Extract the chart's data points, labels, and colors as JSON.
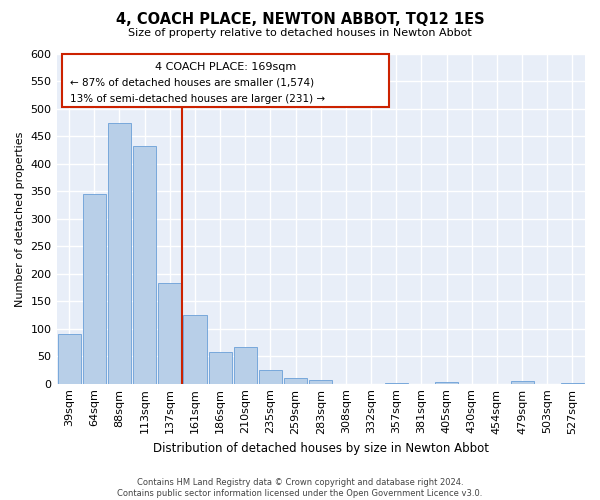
{
  "title": "4, COACH PLACE, NEWTON ABBOT, TQ12 1ES",
  "subtitle": "Size of property relative to detached houses in Newton Abbot",
  "xlabel": "Distribution of detached houses by size in Newton Abbot",
  "ylabel": "Number of detached properties",
  "bar_labels": [
    "39sqm",
    "64sqm",
    "88sqm",
    "113sqm",
    "137sqm",
    "161sqm",
    "186sqm",
    "210sqm",
    "235sqm",
    "259sqm",
    "283sqm",
    "308sqm",
    "332sqm",
    "357sqm",
    "381sqm",
    "405sqm",
    "430sqm",
    "454sqm",
    "479sqm",
    "503sqm",
    "527sqm"
  ],
  "bar_values": [
    90,
    345,
    475,
    432,
    184,
    125,
    57,
    67,
    25,
    10,
    6,
    0,
    0,
    2,
    0,
    3,
    0,
    0,
    4,
    0,
    2
  ],
  "bar_color_normal": "#b8cfe8",
  "bar_edge_color": "#6a9fd8",
  "vline_color": "#cc2200",
  "vline_x_index": 5,
  "ylim": [
    0,
    600
  ],
  "yticks": [
    0,
    50,
    100,
    150,
    200,
    250,
    300,
    350,
    400,
    450,
    500,
    550,
    600
  ],
  "annotation_title": "4 COACH PLACE: 169sqm",
  "annotation_line1": "← 87% of detached houses are smaller (1,574)",
  "annotation_line2": "13% of semi-detached houses are larger (231) →",
  "footer_line1": "Contains HM Land Registry data © Crown copyright and database right 2024.",
  "footer_line2": "Contains public sector information licensed under the Open Government Licence v3.0.",
  "box_edge_color": "#cc2200",
  "background_color": "#e8eef8",
  "grid_color": "#ffffff"
}
